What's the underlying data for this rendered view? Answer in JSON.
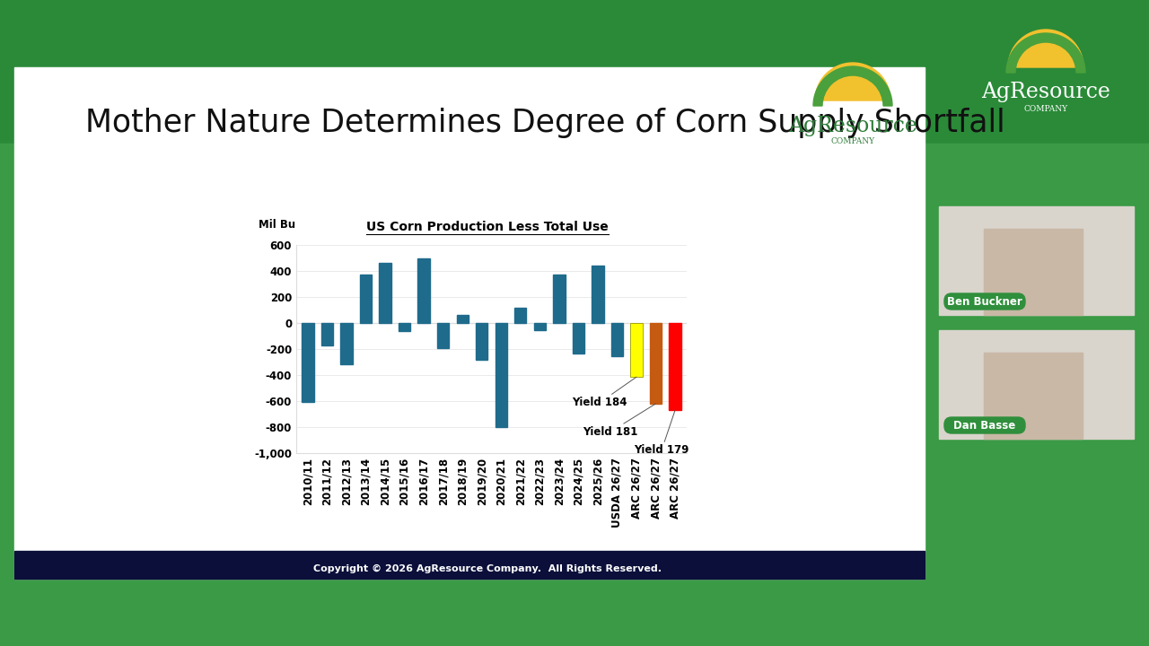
{
  "slide": {
    "title": "Mother Nature Determines Degree of Corn Supply Shortfall",
    "footer": "Copyright © 2026 AgResource Company.  All Rights Reserved.",
    "logo": {
      "name": "AgResource",
      "sub": "COMPANY"
    }
  },
  "participants": [
    "Ben Buckner",
    "Dan Basse"
  ],
  "chart_data": {
    "type": "bar",
    "title": "US Corn Production Less Total Use",
    "ylabel": "Mil Bu",
    "categories": [
      "2010/11",
      "2011/12",
      "2012/13",
      "2013/14",
      "2014/15",
      "2015/16",
      "2016/17",
      "2017/18",
      "2018/19",
      "2019/20",
      "2020/21",
      "2021/22",
      "2022/23",
      "2023/24",
      "2024/25",
      "2025/26",
      "USDA 26/27",
      "ARC 26/27",
      "ARC 26/27",
      "ARC 26/27"
    ],
    "values": [
      -610,
      -170,
      -320,
      370,
      465,
      -60,
      500,
      -190,
      65,
      -280,
      -800,
      115,
      -55,
      370,
      -235,
      440,
      -255,
      -415,
      -620,
      -670
    ],
    "colors": [
      "#1f6b8c",
      "#1f6b8c",
      "#1f6b8c",
      "#1f6b8c",
      "#1f6b8c",
      "#1f6b8c",
      "#1f6b8c",
      "#1f6b8c",
      "#1f6b8c",
      "#1f6b8c",
      "#1f6b8c",
      "#1f6b8c",
      "#1f6b8c",
      "#1f6b8c",
      "#1f6b8c",
      "#1f6b8c",
      "#1f6b8c",
      "#ffff00",
      "#c55a11",
      "#ff0000"
    ],
    "annotations": [
      null,
      null,
      null,
      null,
      null,
      null,
      null,
      null,
      null,
      null,
      null,
      null,
      null,
      null,
      null,
      null,
      null,
      "Yield 184",
      "Yield 181",
      "Yield 179"
    ],
    "ylim": [
      -1000,
      600
    ],
    "yticks": [
      {
        "value": -1000,
        "label": "-1,000"
      },
      -800,
      -600,
      -400,
      -200,
      0,
      200,
      400,
      600
    ],
    "grid": true
  }
}
